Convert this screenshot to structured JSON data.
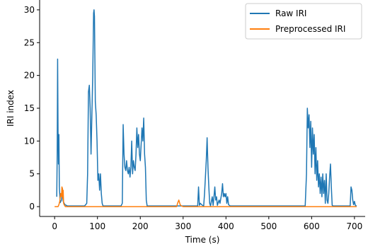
{
  "chart_data": {
    "type": "line",
    "xlabel": "Time (s)",
    "ylabel": "IRI index",
    "xlim": [
      -35,
      725
    ],
    "ylim": [
      -1.5,
      31.5
    ],
    "xticks": [
      0,
      100,
      200,
      300,
      400,
      500,
      600,
      700
    ],
    "yticks": [
      0,
      5,
      10,
      15,
      20,
      25,
      30
    ],
    "grid": false,
    "legend_position": "top-right",
    "series": [
      {
        "name": "Raw IRI",
        "color": "#1f77b4",
        "points": [
          [
            5,
            1.5
          ],
          [
            6,
            8
          ],
          [
            7,
            22.5
          ],
          [
            8,
            11
          ],
          [
            9,
            6.5
          ],
          [
            10,
            11
          ],
          [
            11,
            3
          ],
          [
            13,
            0.6
          ],
          [
            16,
            1
          ],
          [
            18,
            2.8
          ],
          [
            20,
            0.8
          ],
          [
            24,
            0.3
          ],
          [
            30,
            0.1
          ],
          [
            50,
            0.1
          ],
          [
            70,
            0.1
          ],
          [
            75,
            0.5
          ],
          [
            77,
            5
          ],
          [
            79,
            17.5
          ],
          [
            81,
            18.5
          ],
          [
            83,
            15
          ],
          [
            85,
            8
          ],
          [
            87,
            14
          ],
          [
            89,
            20
          ],
          [
            91,
            29.5
          ],
          [
            92,
            30
          ],
          [
            93,
            29
          ],
          [
            95,
            16
          ],
          [
            97,
            14
          ],
          [
            99,
            10
          ],
          [
            101,
            4
          ],
          [
            103,
            5
          ],
          [
            105,
            2.5
          ],
          [
            107,
            5
          ],
          [
            109,
            2
          ],
          [
            111,
            0.5
          ],
          [
            113,
            0.1
          ],
          [
            130,
            0.1
          ],
          [
            155,
            0.1
          ],
          [
            158,
            0.5
          ],
          [
            160,
            12.5
          ],
          [
            162,
            8
          ],
          [
            164,
            6
          ],
          [
            166,
            5.5
          ],
          [
            168,
            7
          ],
          [
            170,
            5.5
          ],
          [
            172,
            5
          ],
          [
            174,
            6
          ],
          [
            176,
            4.5
          ],
          [
            178,
            6
          ],
          [
            180,
            10
          ],
          [
            182,
            5
          ],
          [
            184,
            7
          ],
          [
            186,
            6
          ],
          [
            188,
            5.5
          ],
          [
            190,
            8
          ],
          [
            192,
            12
          ],
          [
            194,
            9
          ],
          [
            196,
            11
          ],
          [
            198,
            8
          ],
          [
            200,
            7
          ],
          [
            202,
            9.5
          ],
          [
            204,
            12
          ],
          [
            206,
            10
          ],
          [
            208,
            13.5
          ],
          [
            210,
            8
          ],
          [
            212,
            6
          ],
          [
            214,
            1
          ],
          [
            216,
            0.1
          ],
          [
            240,
            0.1
          ],
          [
            260,
            0.1
          ],
          [
            280,
            0.1
          ],
          [
            334,
            0.1
          ],
          [
            336,
            3
          ],
          [
            338,
            0.2
          ],
          [
            340,
            0.5
          ],
          [
            345,
            0.2
          ],
          [
            348,
            0.1
          ],
          [
            350,
            2
          ],
          [
            352,
            4.5
          ],
          [
            354,
            7
          ],
          [
            356,
            10.5
          ],
          [
            358,
            6
          ],
          [
            360,
            3
          ],
          [
            362,
            0.5
          ],
          [
            364,
            0.1
          ],
          [
            368,
            1.5
          ],
          [
            370,
            0.2
          ],
          [
            372,
            1.5
          ],
          [
            374,
            3
          ],
          [
            376,
            1
          ],
          [
            378,
            1.5
          ],
          [
            380,
            0.2
          ],
          [
            384,
            1
          ],
          [
            386,
            0.5
          ],
          [
            390,
            2
          ],
          [
            392,
            3.5
          ],
          [
            394,
            1.5
          ],
          [
            396,
            2
          ],
          [
            398,
            1.5
          ],
          [
            400,
            2
          ],
          [
            402,
            0.5
          ],
          [
            404,
            1.5
          ],
          [
            406,
            0.3
          ],
          [
            410,
            0.1
          ],
          [
            450,
            0.1
          ],
          [
            500,
            0.1
          ],
          [
            550,
            0.1
          ],
          [
            585,
            0.1
          ],
          [
            588,
            5
          ],
          [
            590,
            15
          ],
          [
            592,
            12
          ],
          [
            594,
            14
          ],
          [
            596,
            9
          ],
          [
            598,
            13
          ],
          [
            600,
            6
          ],
          [
            602,
            12
          ],
          [
            604,
            8
          ],
          [
            606,
            11
          ],
          [
            608,
            5
          ],
          [
            610,
            9
          ],
          [
            612,
            4
          ],
          [
            614,
            7
          ],
          [
            616,
            3
          ],
          [
            618,
            5
          ],
          [
            620,
            2
          ],
          [
            622,
            4.5
          ],
          [
            624,
            1.5
          ],
          [
            626,
            5
          ],
          [
            628,
            2
          ],
          [
            630,
            4
          ],
          [
            632,
            0.5
          ],
          [
            634,
            5
          ],
          [
            636,
            1
          ],
          [
            638,
            0.5
          ],
          [
            640,
            2
          ],
          [
            642,
            4.5
          ],
          [
            644,
            6.5
          ],
          [
            646,
            3
          ],
          [
            648,
            0.2
          ],
          [
            650,
            0.1
          ],
          [
            670,
            0.1
          ],
          [
            690,
            0.1
          ],
          [
            692,
            3
          ],
          [
            694,
            2.5
          ],
          [
            696,
            1
          ],
          [
            698,
            0.3
          ],
          [
            700,
            0.8
          ],
          [
            702,
            0.2
          ],
          [
            705,
            0.1
          ]
        ]
      },
      {
        "name": "Preprocessed IRI",
        "color": "#ff7f0e",
        "points": [
          [
            0,
            0
          ],
          [
            8,
            0
          ],
          [
            10,
            0.3
          ],
          [
            12,
            0.8
          ],
          [
            14,
            2
          ],
          [
            16,
            1.5
          ],
          [
            17,
            3
          ],
          [
            18,
            2.8
          ],
          [
            19,
            1.2
          ],
          [
            20,
            2.5
          ],
          [
            21,
            0.5
          ],
          [
            23,
            0.2
          ],
          [
            25,
            0
          ],
          [
            60,
            0
          ],
          [
            100,
            0
          ],
          [
            150,
            0
          ],
          [
            200,
            0
          ],
          [
            250,
            0
          ],
          [
            285,
            0
          ],
          [
            287,
            0.5
          ],
          [
            290,
            1
          ],
          [
            293,
            0.3
          ],
          [
            296,
            0.1
          ],
          [
            300,
            0
          ],
          [
            350,
            0
          ],
          [
            400,
            0
          ],
          [
            450,
            0
          ],
          [
            500,
            0
          ],
          [
            550,
            0
          ],
          [
            600,
            0
          ],
          [
            650,
            0
          ],
          [
            705,
            0
          ]
        ]
      }
    ]
  }
}
